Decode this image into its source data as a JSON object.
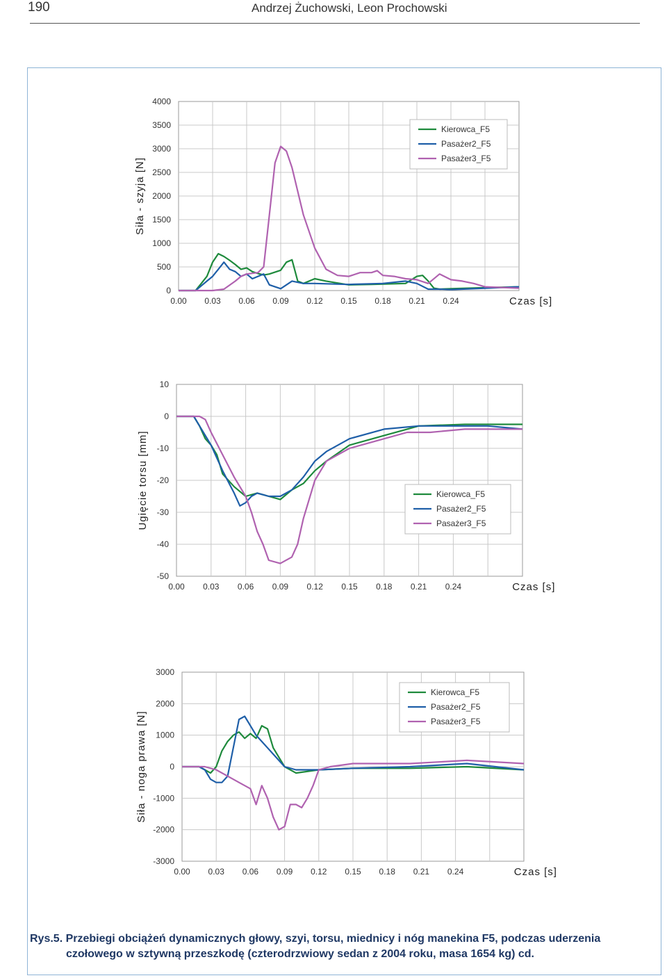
{
  "header": {
    "page_number": "190",
    "authors": "Andrzej Żuchowski, Leon Prochowski"
  },
  "caption": {
    "label": "Rys.5.",
    "line1": "Przebiegi obciążeń dynamicznych głowy, szyi,  torsu, miednicy i nóg manekina F5, podczas uderzenia",
    "line2": "czołowego w sztywną przeszkodę (czterodrzwiowy sedan z 2004 roku, masa 1654 kg) cd."
  },
  "colors": {
    "kierowca": "#1e8a3c",
    "pasazer2": "#1f5fa8",
    "pasazer3": "#b062b0",
    "grid": "#c8c8c8",
    "axis_text": "#333333"
  },
  "chart_data": [
    {
      "type": "line",
      "ylabel": "Siła - szyja [N]",
      "xlabel": "Czas   [s]",
      "x_ticks": [
        "0.00",
        "0.03",
        "0.06",
        "0.09",
        "0.12",
        "0.15",
        "0.18",
        "0.21",
        "0.24"
      ],
      "y_ticks": [
        "4000",
        "3500",
        "3000",
        "2500",
        "2000",
        "1500",
        "1000",
        "500",
        "0"
      ],
      "xlim": [
        0,
        0.3
      ],
      "ylim": [
        0,
        4000
      ],
      "legend": "top-right",
      "grid": true,
      "series": [
        {
          "name": "Kierowca_F5",
          "x": [
            0,
            0.015,
            0.02,
            0.025,
            0.03,
            0.035,
            0.04,
            0.045,
            0.05,
            0.055,
            0.06,
            0.065,
            0.07,
            0.075,
            0.08,
            0.09,
            0.095,
            0.1,
            0.105,
            0.11,
            0.12,
            0.13,
            0.15,
            0.17,
            0.2,
            0.21,
            0.215,
            0.22,
            0.225,
            0.23,
            0.24,
            0.27,
            0.3
          ],
          "values": [
            0,
            0,
            150,
            300,
            600,
            780,
            720,
            640,
            550,
            450,
            480,
            400,
            360,
            330,
            350,
            430,
            600,
            650,
            200,
            150,
            250,
            200,
            120,
            130,
            150,
            300,
            320,
            200,
            50,
            30,
            40,
            60,
            80
          ]
        },
        {
          "name": "Pasażer2_F5",
          "x": [
            0,
            0.015,
            0.02,
            0.025,
            0.03,
            0.035,
            0.04,
            0.045,
            0.05,
            0.055,
            0.06,
            0.065,
            0.07,
            0.075,
            0.08,
            0.09,
            0.1,
            0.11,
            0.12,
            0.15,
            0.18,
            0.2,
            0.21,
            0.22,
            0.23,
            0.24,
            0.27,
            0.3
          ],
          "values": [
            0,
            0,
            100,
            200,
            300,
            450,
            600,
            450,
            400,
            300,
            350,
            250,
            300,
            350,
            120,
            40,
            200,
            150,
            150,
            130,
            150,
            200,
            150,
            30,
            30,
            20,
            50,
            80
          ]
        },
        {
          "name": "Pasażer3_F5",
          "x": [
            0,
            0.03,
            0.04,
            0.05,
            0.055,
            0.06,
            0.07,
            0.075,
            0.08,
            0.085,
            0.09,
            0.095,
            0.1,
            0.105,
            0.11,
            0.12,
            0.13,
            0.14,
            0.15,
            0.16,
            0.17,
            0.175,
            0.18,
            0.19,
            0.2,
            0.21,
            0.22,
            0.23,
            0.24,
            0.25,
            0.26,
            0.27,
            0.3
          ],
          "values": [
            0,
            0,
            30,
            200,
            300,
            350,
            380,
            500,
            1600,
            2700,
            3050,
            2950,
            2600,
            2100,
            1600,
            900,
            450,
            320,
            300,
            380,
            380,
            420,
            320,
            300,
            250,
            230,
            150,
            350,
            230,
            200,
            150,
            80,
            50
          ]
        }
      ]
    },
    {
      "type": "line",
      "ylabel": "Ugięcie torsu [mm]",
      "xlabel": "Czas   [s]",
      "x_ticks": [
        "0.00",
        "0.03",
        "0.06",
        "0.09",
        "0.12",
        "0.15",
        "0.18",
        "0.21",
        "0.24"
      ],
      "y_ticks": [
        "10",
        "0",
        "-10",
        "-20",
        "-30",
        "-40",
        "-50"
      ],
      "xlim": [
        0,
        0.3
      ],
      "ylim": [
        -50,
        10
      ],
      "legend": "right",
      "grid": true,
      "series": [
        {
          "name": "Kierowca_F5",
          "x": [
            0,
            0.015,
            0.02,
            0.025,
            0.03,
            0.035,
            0.04,
            0.05,
            0.06,
            0.07,
            0.08,
            0.09,
            0.1,
            0.11,
            0.12,
            0.13,
            0.15,
            0.18,
            0.2,
            0.21,
            0.25,
            0.3
          ],
          "values": [
            0,
            0,
            -3,
            -7,
            -9,
            -12,
            -18,
            -22,
            -25,
            -24,
            -25,
            -26,
            -23,
            -21,
            -17,
            -14,
            -9,
            -6,
            -4,
            -3,
            -2.5,
            -2.5
          ]
        },
        {
          "name": "Pasażer2_F5",
          "x": [
            0,
            0.015,
            0.02,
            0.025,
            0.03,
            0.04,
            0.05,
            0.055,
            0.06,
            0.065,
            0.07,
            0.08,
            0.09,
            0.1,
            0.11,
            0.12,
            0.13,
            0.15,
            0.18,
            0.21,
            0.24,
            0.27,
            0.3
          ],
          "values": [
            0,
            0,
            -3,
            -6,
            -9,
            -17,
            -24,
            -28,
            -27,
            -25,
            -24,
            -25,
            -25,
            -23,
            -19,
            -14,
            -11,
            -7,
            -4,
            -3,
            -3,
            -3,
            -4
          ]
        },
        {
          "name": "Pasażer3_F5",
          "x": [
            0,
            0.02,
            0.025,
            0.03,
            0.04,
            0.05,
            0.06,
            0.065,
            0.07,
            0.075,
            0.08,
            0.09,
            0.1,
            0.105,
            0.11,
            0.12,
            0.13,
            0.14,
            0.15,
            0.18,
            0.2,
            0.22,
            0.25,
            0.3
          ],
          "values": [
            0,
            0,
            -1,
            -5,
            -12,
            -19,
            -25,
            -30,
            -36,
            -40,
            -45,
            -46,
            -44,
            -40,
            -32,
            -20,
            -14,
            -12,
            -10,
            -7,
            -5,
            -5,
            -4,
            -4
          ]
        }
      ]
    },
    {
      "type": "line",
      "ylabel": "Siła - noga prawa [N]",
      "xlabel": "Czas   [s]",
      "x_ticks": [
        "0.00",
        "0.03",
        "0.06",
        "0.09",
        "0.12",
        "0.15",
        "0.18",
        "0.21",
        "0.24"
      ],
      "y_ticks": [
        "3000",
        "2000",
        "1000",
        "0",
        "-1000",
        "-2000",
        "-3000"
      ],
      "xlim": [
        0,
        0.3
      ],
      "ylim": [
        -3000,
        3000
      ],
      "legend": "top-right",
      "grid": true,
      "series": [
        {
          "name": "Kierowca_F5",
          "x": [
            0,
            0.015,
            0.02,
            0.025,
            0.03,
            0.035,
            0.04,
            0.045,
            0.05,
            0.055,
            0.06,
            0.065,
            0.07,
            0.075,
            0.08,
            0.085,
            0.09,
            0.1,
            0.12,
            0.15,
            0.2,
            0.25,
            0.3
          ],
          "values": [
            0,
            0,
            -100,
            -200,
            0,
            500,
            800,
            1000,
            1100,
            900,
            1050,
            900,
            1300,
            1200,
            600,
            300,
            0,
            -200,
            -100,
            -50,
            -50,
            0,
            -100
          ]
        },
        {
          "name": "Pasażer2_F5",
          "x": [
            0,
            0.015,
            0.02,
            0.025,
            0.03,
            0.035,
            0.04,
            0.045,
            0.05,
            0.055,
            0.06,
            0.065,
            0.07,
            0.075,
            0.08,
            0.09,
            0.1,
            0.12,
            0.15,
            0.2,
            0.25,
            0.3
          ],
          "values": [
            0,
            0,
            -100,
            -400,
            -500,
            -500,
            -300,
            600,
            1500,
            1600,
            1300,
            1000,
            800,
            600,
            400,
            0,
            -100,
            -100,
            -50,
            0,
            100,
            -100
          ]
        },
        {
          "name": "Pasażer3_F5",
          "x": [
            0,
            0.02,
            0.03,
            0.04,
            0.05,
            0.06,
            0.065,
            0.07,
            0.075,
            0.08,
            0.085,
            0.09,
            0.095,
            0.1,
            0.105,
            0.11,
            0.115,
            0.12,
            0.13,
            0.15,
            0.2,
            0.25,
            0.3
          ],
          "values": [
            0,
            0,
            -100,
            -300,
            -500,
            -700,
            -1200,
            -600,
            -1000,
            -1600,
            -2000,
            -1900,
            -1200,
            -1200,
            -1300,
            -1000,
            -600,
            -100,
            0,
            100,
            100,
            200,
            100
          ]
        }
      ]
    }
  ]
}
